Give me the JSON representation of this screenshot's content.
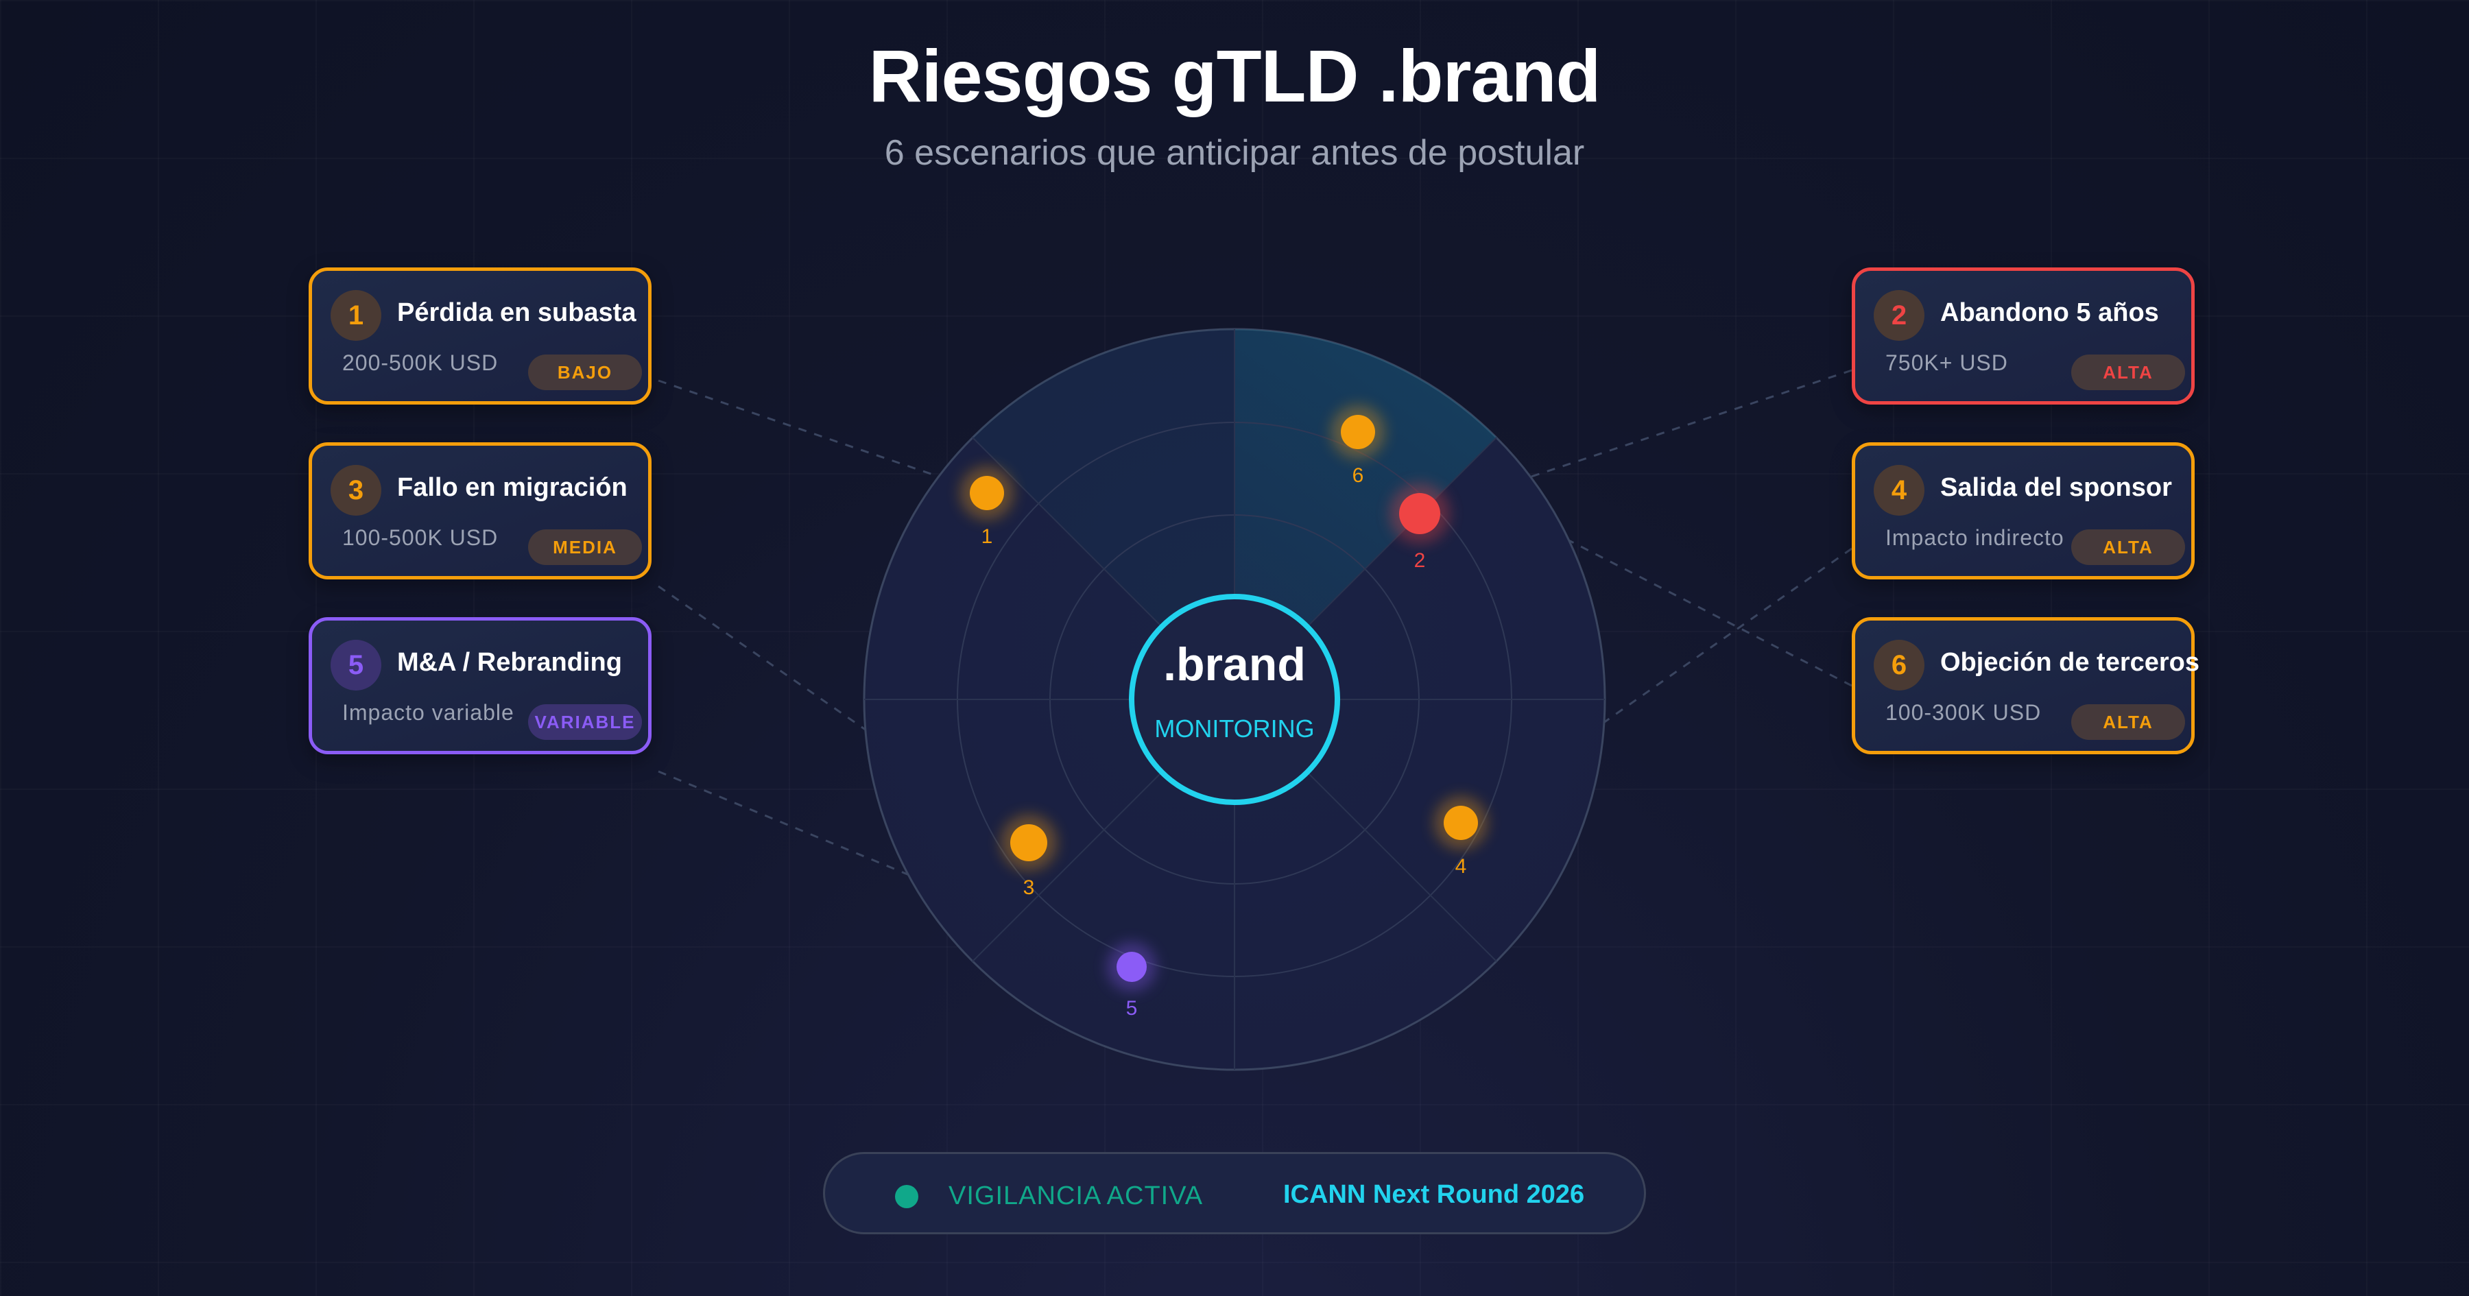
{
  "header": {
    "title": "Riesgos gTLD .brand",
    "subtitle": "6 escenarios que anticipar antes de postular"
  },
  "center": {
    "label": ".brand",
    "status": "MONITORING"
  },
  "colors": {
    "high": "#ef4444",
    "medium": "#f59e0b",
    "variable": "#8b5cf6",
    "accent": "#22d3ee",
    "active": "#10a88a"
  },
  "risks": [
    {
      "number": "1",
      "title": "Pérdida en subasta",
      "impact": "200-500K USD",
      "level": "BAJO",
      "color": "#f59e0b"
    },
    {
      "number": "2",
      "title": "Abandono 5 años",
      "impact": "750K+ USD",
      "level": "ALTA",
      "color": "#ef4444"
    },
    {
      "number": "3",
      "title": "Fallo en migración",
      "impact": "100-500K USD",
      "level": "MEDIA",
      "color": "#f59e0b"
    },
    {
      "number": "4",
      "title": "Salida del sponsor",
      "impact": "Impacto indirecto",
      "level": "ALTA",
      "color": "#f59e0b"
    },
    {
      "number": "5",
      "title": "M&A / Rebranding",
      "impact": "Impacto variable",
      "level": "VARIABLE",
      "color": "#8b5cf6"
    },
    {
      "number": "6",
      "title": "Objeción de terceros",
      "impact": "100-300K USD",
      "level": "ALTA",
      "color": "#f59e0b"
    }
  ],
  "footer": {
    "status": "VIGILANCIA ACTIVA",
    "round": "ICANN Next Round 2026"
  }
}
